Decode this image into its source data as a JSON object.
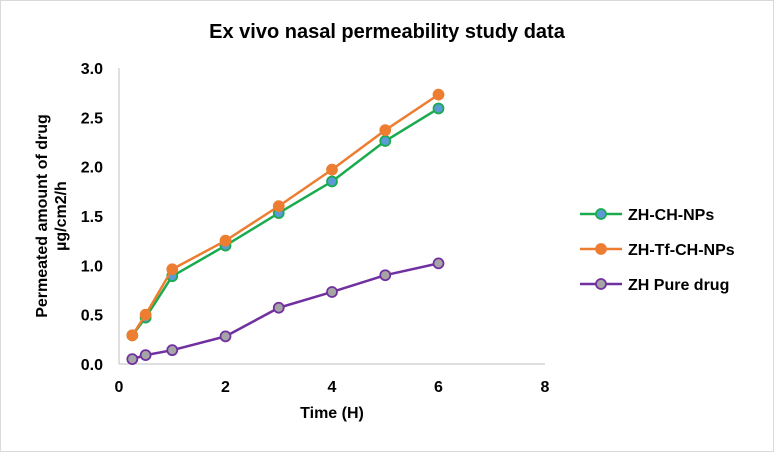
{
  "chart_data": {
    "type": "line",
    "title": "Ex vivo nasal permeability study data",
    "xlabel": "Time (H)",
    "ylabel": [
      "Permeated amount of drug",
      "µg/cm2/h"
    ],
    "xlim": [
      0,
      8
    ],
    "ylim": [
      0,
      3.0
    ],
    "xticks": [
      0,
      2,
      4,
      6,
      8
    ],
    "xtick_labels": [
      "0",
      "2",
      "4",
      "6",
      "8"
    ],
    "yticks": [
      0,
      0.5,
      1.0,
      1.5,
      2.0,
      2.5,
      3.0
    ],
    "ytick_labels": [
      "0.0",
      "0.5",
      "1.0",
      "1.5",
      "2.0",
      "2.5",
      "3.0"
    ],
    "grid": false,
    "legend_position": "right",
    "x": [
      0.25,
      0.5,
      1,
      2,
      3,
      4,
      5,
      6
    ],
    "series": [
      {
        "name": "ZH-CH-NPs",
        "values": [
          0.29,
          0.47,
          0.89,
          1.2,
          1.53,
          1.85,
          2.26,
          2.59
        ],
        "line_color": "#1aab4e",
        "marker_fill": "#5b9bd5",
        "marker_edge": "#1aab4e"
      },
      {
        "name": "ZH-Tf-CH-NPs",
        "values": [
          0.29,
          0.5,
          0.96,
          1.25,
          1.6,
          1.97,
          2.37,
          2.73
        ],
        "line_color": "#ed7d31",
        "marker_fill": "#ed7d31",
        "marker_edge": "#ed7d31"
      },
      {
        "name": "ZH Pure drug",
        "values": [
          0.05,
          0.09,
          0.14,
          0.28,
          0.57,
          0.73,
          0.9,
          1.02
        ],
        "line_color": "#7030a0",
        "marker_fill": "#a5a5a5",
        "marker_edge": "#7030a0"
      }
    ]
  }
}
